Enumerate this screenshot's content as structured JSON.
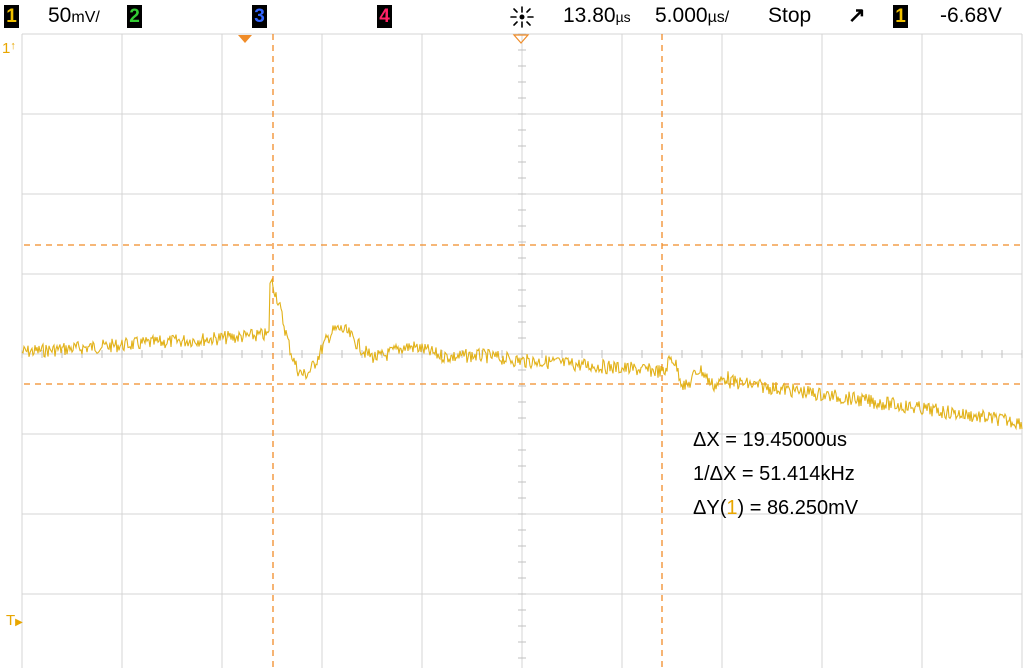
{
  "status": {
    "ch1_badge": "1",
    "ch1_scale": "50",
    "ch1_unit": "mV/",
    "ch2_badge": "2",
    "ch3_badge": "3",
    "ch4_badge": "4",
    "time_delay": "13.80",
    "delay_unit": "µs",
    "time_scale": "5.000",
    "time_unit": "µs/",
    "run_state": "Stop",
    "trigger_slope_symbol": "↗",
    "trigger_channel_badge": "1",
    "trigger_level": "-6.68V"
  },
  "colors": {
    "ch1": "#e8a600",
    "ch2": "#33cc33",
    "ch3": "#3366ff",
    "ch4": "#ff2266",
    "cursor": "#f08c28",
    "grid": "#d4d4d4"
  },
  "markers": {
    "ch1_ground": "1",
    "trigger_level": "T"
  },
  "measurements": {
    "dx_label": "ΔX = 19.45000us",
    "inv_dx_label": "1/ΔX = 51.414kHz",
    "dy_prefix": "ΔY(",
    "dy_channel": "1",
    "dy_suffix": ") = 86.250mV"
  }
}
